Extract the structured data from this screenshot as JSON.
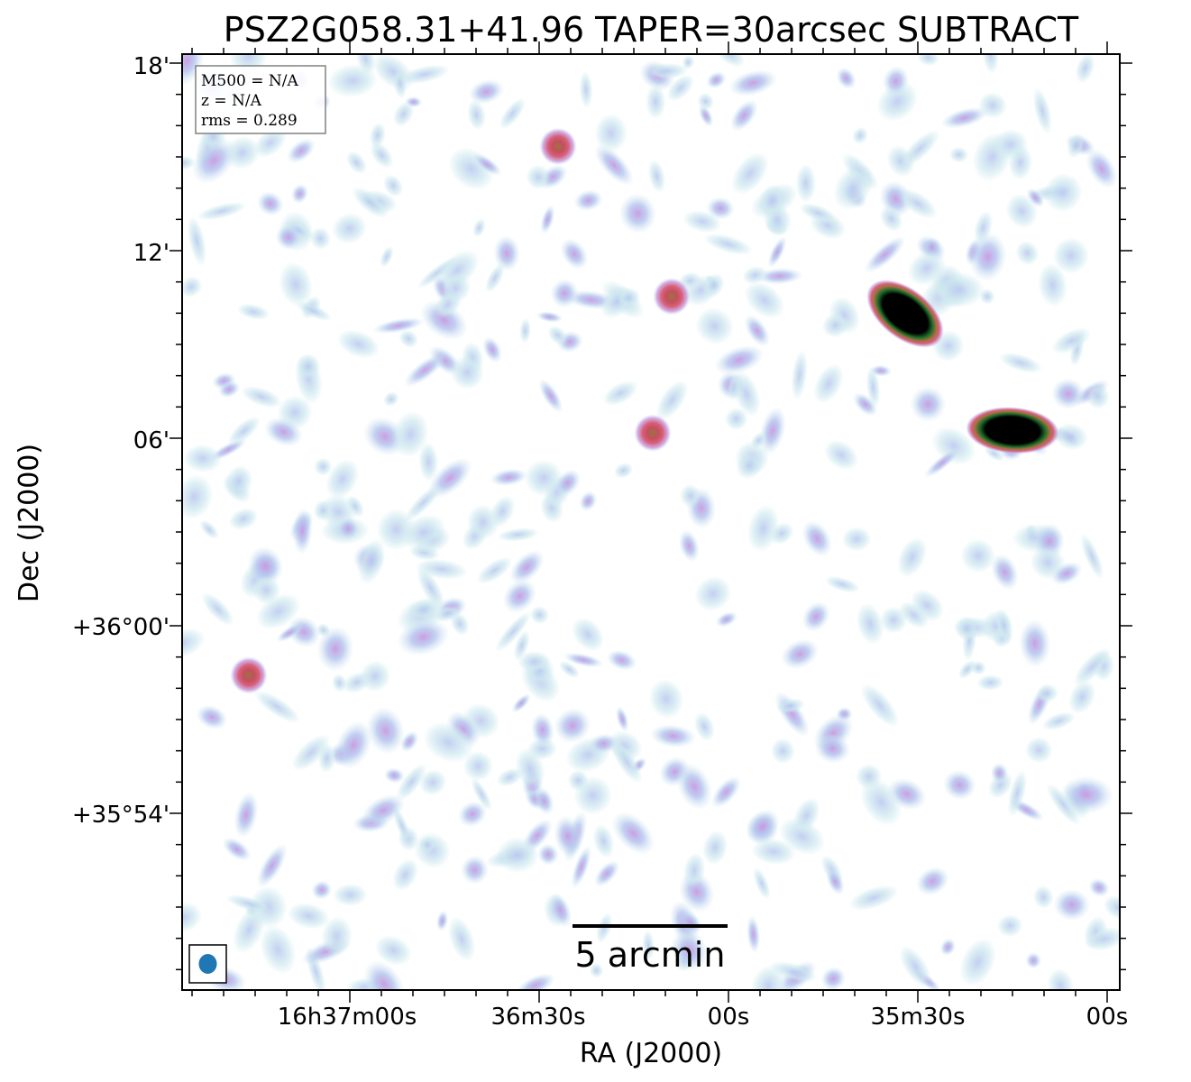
{
  "chart_data": {
    "type": "heatmap",
    "title": "PSZ2G058.31+41.96 TAPER=30arcsec SUBTRACT",
    "xlabel": "RA (J2000)",
    "ylabel": "Dec (J2000)",
    "x_ticks": [
      "16h37m00s",
      "36m30s",
      "00s",
      "35m30s",
      "00s"
    ],
    "y_ticks": [
      "18'",
      "12'",
      "06'",
      "+36°00'",
      "+35°54'"
    ],
    "info_box": {
      "m500": "M500 = N/A",
      "z": "z = N/A",
      "rms": "rms = 0.289"
    },
    "scale_bar_label": "5 arcmin",
    "beam_color": "#1f77b4",
    "colormap": [
      "#ffffff",
      "#cfe9ef",
      "#b7c6ef",
      "#c69ae0",
      "#d9607a",
      "#a27040",
      "#1b6b2a",
      "#000000"
    ],
    "sources": [
      {
        "ra": "16h35m32s",
        "dec": "+36°09'59\"",
        "peak": "strong",
        "shape": "extended"
      },
      {
        "ra": "16h35m15s",
        "dec": "+36°06'15\"",
        "peak": "strong",
        "shape": "extended"
      },
      {
        "ra": "16h36m09s",
        "dec": "+36°10'32\"",
        "peak": "moderate",
        "shape": "compact"
      },
      {
        "ra": "16h36m12s",
        "dec": "+36°06'10\"",
        "peak": "moderate",
        "shape": "compact"
      },
      {
        "ra": "16h36m27s",
        "dec": "+36°15'20\"",
        "peak": "moderate",
        "shape": "compact"
      },
      {
        "ra": "16h37m16s",
        "dec": "+35°58'25\"",
        "peak": "moderate",
        "shape": "compact"
      }
    ]
  }
}
